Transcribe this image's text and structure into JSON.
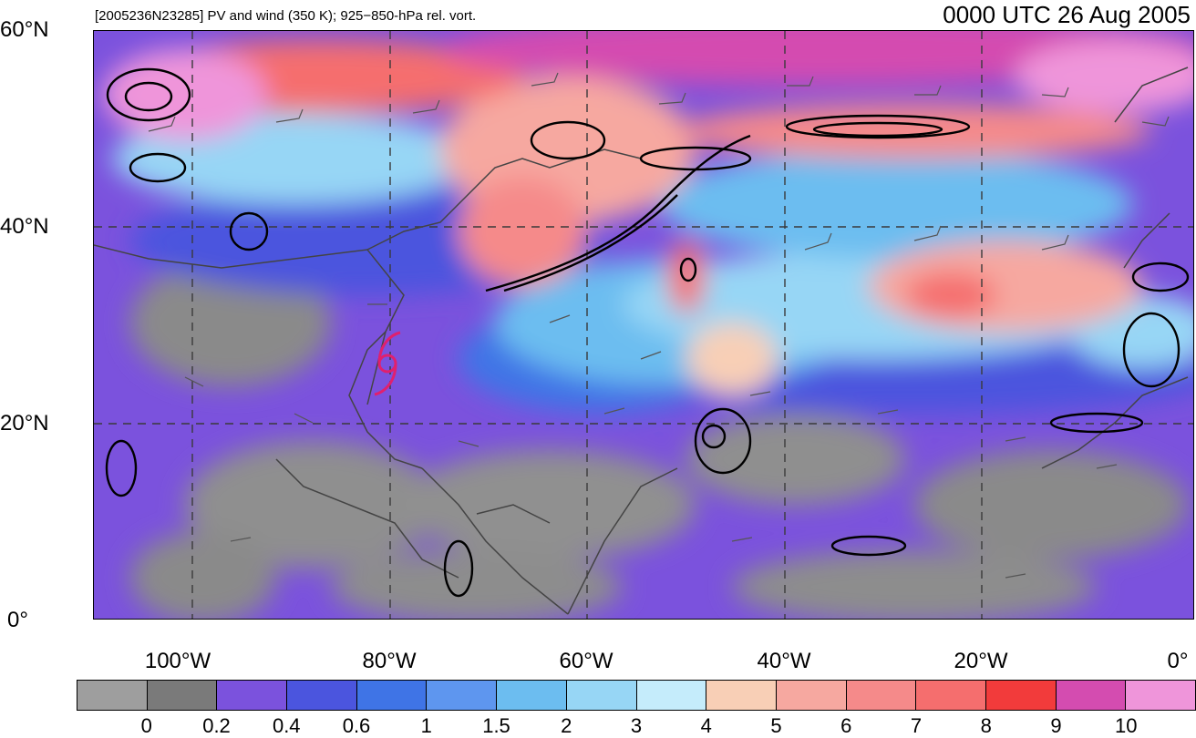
{
  "header": {
    "subtitle": "[2005236N23285] PV and wind (350 K); 925−850-hPa rel. vort.",
    "datetime": "0000 UTC 26 Aug 2005"
  },
  "map": {
    "lat_labels": [
      "60°N",
      "40°N",
      "20°N",
      "0°"
    ],
    "lon_labels": [
      "100°W",
      "80°W",
      "60°W",
      "40°W",
      "20°W",
      "0°"
    ],
    "lat_range": [
      0,
      60
    ],
    "lon_range": [
      -110,
      0
    ],
    "storm_symbol": "tropical-cyclone-icon",
    "storm_color": "#e0206e",
    "fields": [
      "PV shading",
      "wind barbs",
      "relative vorticity contours",
      "coastlines"
    ]
  },
  "colorbar": {
    "labels": [
      "0",
      "0.2",
      "0.4",
      "0.6",
      "1",
      "1.5",
      "2",
      "3",
      "4",
      "5",
      "6",
      "7",
      "8",
      "9",
      "10"
    ],
    "colors": [
      "#9e9e9e",
      "#7a7a7a",
      "#7b52dd",
      "#4b55de",
      "#3f74e6",
      "#5e96ef",
      "#6cbdf0",
      "#97d6f5",
      "#c5ecfb",
      "#f8cfb6",
      "#f6a8a0",
      "#f58a8a",
      "#f56e6e",
      "#f23b3b",
      "#d44cb0",
      "#ef95da"
    ]
  }
}
